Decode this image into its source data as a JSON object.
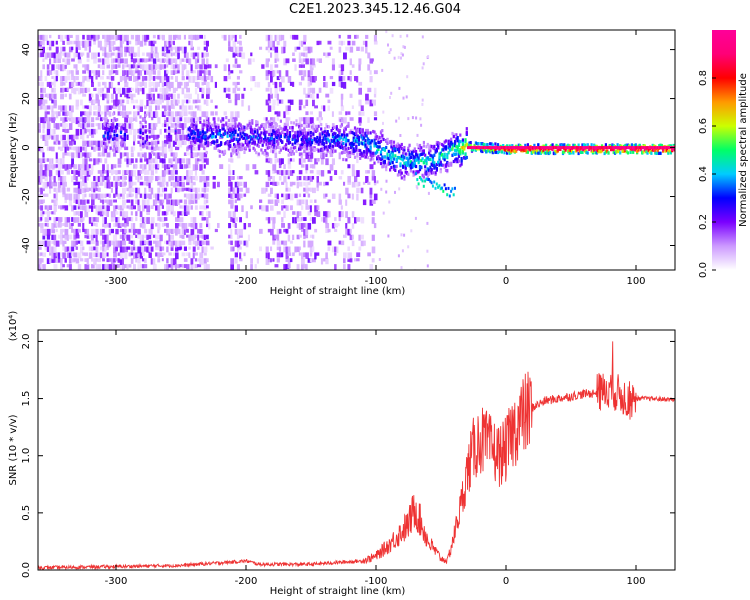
{
  "figure": {
    "title": "C2E1.2023.345.12.46.G04"
  },
  "chart_data": [
    {
      "type": "heatmap",
      "xlabel": "Height of straight line (km)",
      "ylabel": "Frequency (Hz)",
      "xlim": [
        -360,
        130
      ],
      "ylim": [
        -50,
        48
      ],
      "xticks": [
        -300,
        -200,
        -100,
        0,
        100
      ],
      "yticks": [
        -40,
        -20,
        0,
        20,
        40
      ],
      "colorbar": {
        "label": "Normalized spectral amplitude",
        "range": [
          0,
          1
        ],
        "ticks": [
          "0.0",
          "0.2",
          "0.4",
          "0.6",
          "0.8"
        ],
        "colormap": [
          "#ffffff",
          "#cc99ff",
          "#7a00ff",
          "#0000ff",
          "#00ccff",
          "#00ff66",
          "#ccff00",
          "#ff9900",
          "#ff0000",
          "#ff0077",
          "#ff0099"
        ]
      },
      "signal_track": [
        {
          "x": -305,
          "y": 6,
          "amp": 0.3
        },
        {
          "x": -240,
          "y": 6,
          "amp": 0.3
        },
        {
          "x": -220,
          "y": 5,
          "amp": 0.35
        },
        {
          "x": -200,
          "y": 5,
          "amp": 0.3
        },
        {
          "x": -160,
          "y": 4,
          "amp": 0.3
        },
        {
          "x": -130,
          "y": 4,
          "amp": 0.35
        },
        {
          "x": -110,
          "y": 3,
          "amp": 0.4
        },
        {
          "x": -95,
          "y": -1,
          "amp": 0.45
        },
        {
          "x": -80,
          "y": -5,
          "amp": 0.45
        },
        {
          "x": -60,
          "y": -5,
          "amp": 0.45
        },
        {
          "x": -40,
          "y": 0,
          "amp": 0.5
        },
        {
          "x": -30,
          "y": 1,
          "amp": 0.7
        },
        {
          "x": 0,
          "y": 0,
          "amp": 0.9
        },
        {
          "x": 50,
          "y": 0,
          "amp": 0.95
        },
        {
          "x": 130,
          "y": 0,
          "amp": 0.95
        }
      ]
    },
    {
      "type": "line",
      "xlabel": "Height of straight line (km)",
      "ylabel": "SNR (10 * v/v)",
      "y_multiplier": "(x10⁴)",
      "xlim": [
        -360,
        130
      ],
      "ylim": [
        0,
        2.1
      ],
      "xticks": [
        -300,
        -200,
        -100,
        0,
        100
      ],
      "yticks": [
        "0.0",
        "0.5",
        "1.0",
        "1.5",
        "2.0"
      ],
      "color": "#ee3333",
      "series": [
        {
          "x": [
            -360,
            -300,
            -250,
            -210,
            -200,
            -190,
            -150,
            -110,
            -100,
            -90,
            -75,
            -70,
            -65,
            -60,
            -50,
            -45,
            -40,
            -35,
            -30,
            -25,
            -20,
            -15,
            -10,
            -5,
            0,
            5,
            10,
            20,
            30,
            40,
            50,
            60,
            70,
            75,
            80,
            85,
            90,
            95,
            100,
            110,
            130
          ],
          "y": [
            0.02,
            0.03,
            0.04,
            0.07,
            0.08,
            0.05,
            0.05,
            0.08,
            0.12,
            0.22,
            0.4,
            0.55,
            0.4,
            0.25,
            0.1,
            0.08,
            0.3,
            0.55,
            0.85,
            1.05,
            1.15,
            1.1,
            1.05,
            1.0,
            1.05,
            1.2,
            1.3,
            1.42,
            1.48,
            1.5,
            1.52,
            1.54,
            1.55,
            1.56,
            1.6,
            1.55,
            1.52,
            1.48,
            1.5,
            1.5,
            1.49
          ]
        }
      ]
    }
  ]
}
